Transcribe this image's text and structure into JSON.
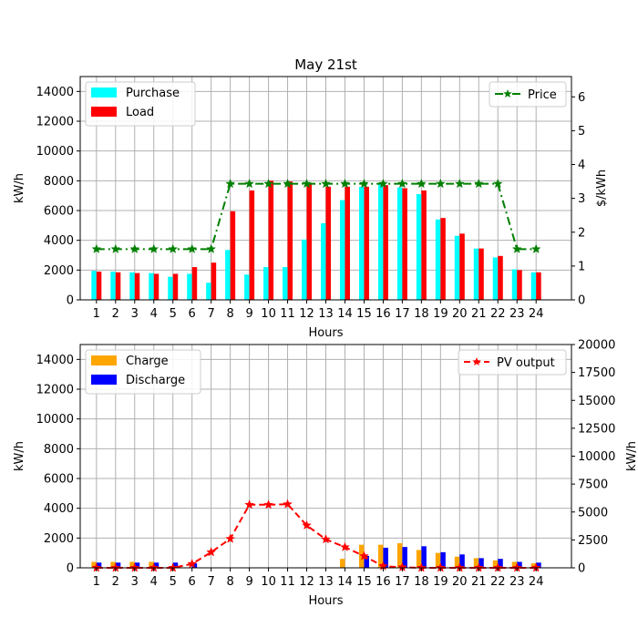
{
  "chart_data": [
    {
      "type": "bar",
      "title": "May 21st",
      "xlabel": "Hours",
      "ylabel": "kW/h",
      "y2label": "$/kWh",
      "categories": [
        "1",
        "2",
        "3",
        "4",
        "5",
        "6",
        "7",
        "8",
        "9",
        "10",
        "11",
        "12",
        "13",
        "14",
        "15",
        "16",
        "17",
        "18",
        "19",
        "20",
        "21",
        "22",
        "23",
        "24"
      ],
      "ylim": [
        0,
        15000
      ],
      "y2lim": [
        0,
        6.6
      ],
      "yticks": [
        0,
        2000,
        4000,
        6000,
        8000,
        10000,
        12000,
        14000
      ],
      "y2ticks": [
        0,
        1,
        2,
        3,
        4,
        5,
        6
      ],
      "grid": true,
      "series": [
        {
          "name": "Purchase",
          "type": "bar",
          "color": "#00ffff",
          "axis": "left",
          "values": [
            1950,
            1900,
            1850,
            1800,
            1550,
            1750,
            1150,
            3350,
            1700,
            2200,
            2200,
            4050,
            5150,
            6700,
            7600,
            7750,
            7550,
            7100,
            5400,
            4300,
            3450,
            2850,
            2050,
            1850
          ]
        },
        {
          "name": "Load",
          "type": "bar",
          "color": "#ff0000",
          "axis": "left",
          "values": [
            1900,
            1850,
            1800,
            1750,
            1750,
            2200,
            2500,
            5950,
            7350,
            8000,
            7950,
            7850,
            7600,
            7600,
            7600,
            7700,
            7500,
            7350,
            5500,
            4450,
            3450,
            2950,
            2000,
            1850
          ]
        },
        {
          "name": "Price",
          "type": "line",
          "color": "#008000",
          "axis": "right",
          "values": [
            1.5,
            1.5,
            1.5,
            1.5,
            1.5,
            1.5,
            1.5,
            3.43,
            3.43,
            3.43,
            3.43,
            3.43,
            3.43,
            3.43,
            3.43,
            3.43,
            3.43,
            3.43,
            3.43,
            3.43,
            3.43,
            3.43,
            1.5,
            1.5
          ]
        }
      ],
      "legend_left": "top-left",
      "legend_right": "top-right"
    },
    {
      "type": "bar",
      "title": "",
      "xlabel": "Hours",
      "ylabel": "kW/h",
      "y2label": "kW/h",
      "categories": [
        "1",
        "2",
        "3",
        "4",
        "5",
        "6",
        "7",
        "8",
        "9",
        "10",
        "11",
        "12",
        "13",
        "14",
        "15",
        "16",
        "17",
        "18",
        "19",
        "20",
        "21",
        "22",
        "23",
        "24"
      ],
      "ylim": [
        0,
        15000
      ],
      "y2lim": [
        0,
        20000
      ],
      "yticks": [
        0,
        2000,
        4000,
        6000,
        8000,
        10000,
        12000,
        14000
      ],
      "y2ticks": [
        0,
        2500,
        5000,
        7500,
        10000,
        12500,
        15000,
        17500,
        20000
      ],
      "grid": true,
      "series": [
        {
          "name": "Charge",
          "type": "bar",
          "color": "#ffa500",
          "axis": "left",
          "values": [
            400,
            400,
            400,
            400,
            0,
            0,
            0,
            0,
            0,
            0,
            0,
            0,
            0,
            600,
            1550,
            1550,
            1650,
            1200,
            1000,
            750,
            650,
            500,
            400,
            300
          ]
        },
        {
          "name": "Discharge",
          "type": "bar",
          "color": "#0000ff",
          "axis": "left",
          "values": [
            350,
            350,
            350,
            350,
            350,
            300,
            0,
            0,
            0,
            0,
            0,
            0,
            0,
            0,
            800,
            1350,
            1400,
            1450,
            1050,
            900,
            650,
            600,
            400,
            350
          ]
        },
        {
          "name": "PV output",
          "type": "line",
          "color": "#ff0000",
          "axis": "right",
          "values": [
            0,
            0,
            0,
            0,
            0,
            350,
            1400,
            2600,
            5650,
            5650,
            5700,
            3800,
            2550,
            1850,
            1050,
            150,
            50,
            0,
            0,
            0,
            0,
            0,
            0,
            0
          ]
        }
      ],
      "legend_left": "top-left",
      "legend_right": "top-right"
    }
  ]
}
